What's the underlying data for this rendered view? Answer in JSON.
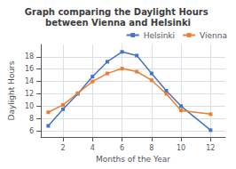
{
  "chart_data": {
    "type": "line",
    "title": "Graph comparing the Daylight Hours between Vienna and Helsinki",
    "xlabel": "Months of the Year",
    "ylabel": "Daylight Hours",
    "x": [
      1,
      2,
      3,
      4,
      5,
      6,
      7,
      8,
      9,
      10,
      12
    ],
    "series": [
      {
        "name": "Helsinki",
        "color": "#4472c4",
        "marker": "square",
        "values": [
          6.8,
          9.5,
          12.0,
          14.8,
          17.2,
          18.8,
          18.2,
          15.3,
          12.5,
          10.0,
          6.1
        ]
      },
      {
        "name": "Vienna",
        "color": "#ed7d31",
        "marker": "square",
        "values": [
          9.0,
          10.2,
          12.1,
          14.0,
          15.3,
          16.1,
          15.6,
          14.2,
          12.0,
          9.3,
          8.7
        ]
      }
    ],
    "xlim": [
      0.5,
      13
    ],
    "xticks": [
      2,
      4,
      6,
      8,
      10,
      12
    ],
    "ylim": [
      5,
      20
    ],
    "yticks": [
      6,
      8,
      10,
      12,
      14,
      16,
      18
    ],
    "grid": true,
    "legend": "upper right"
  }
}
